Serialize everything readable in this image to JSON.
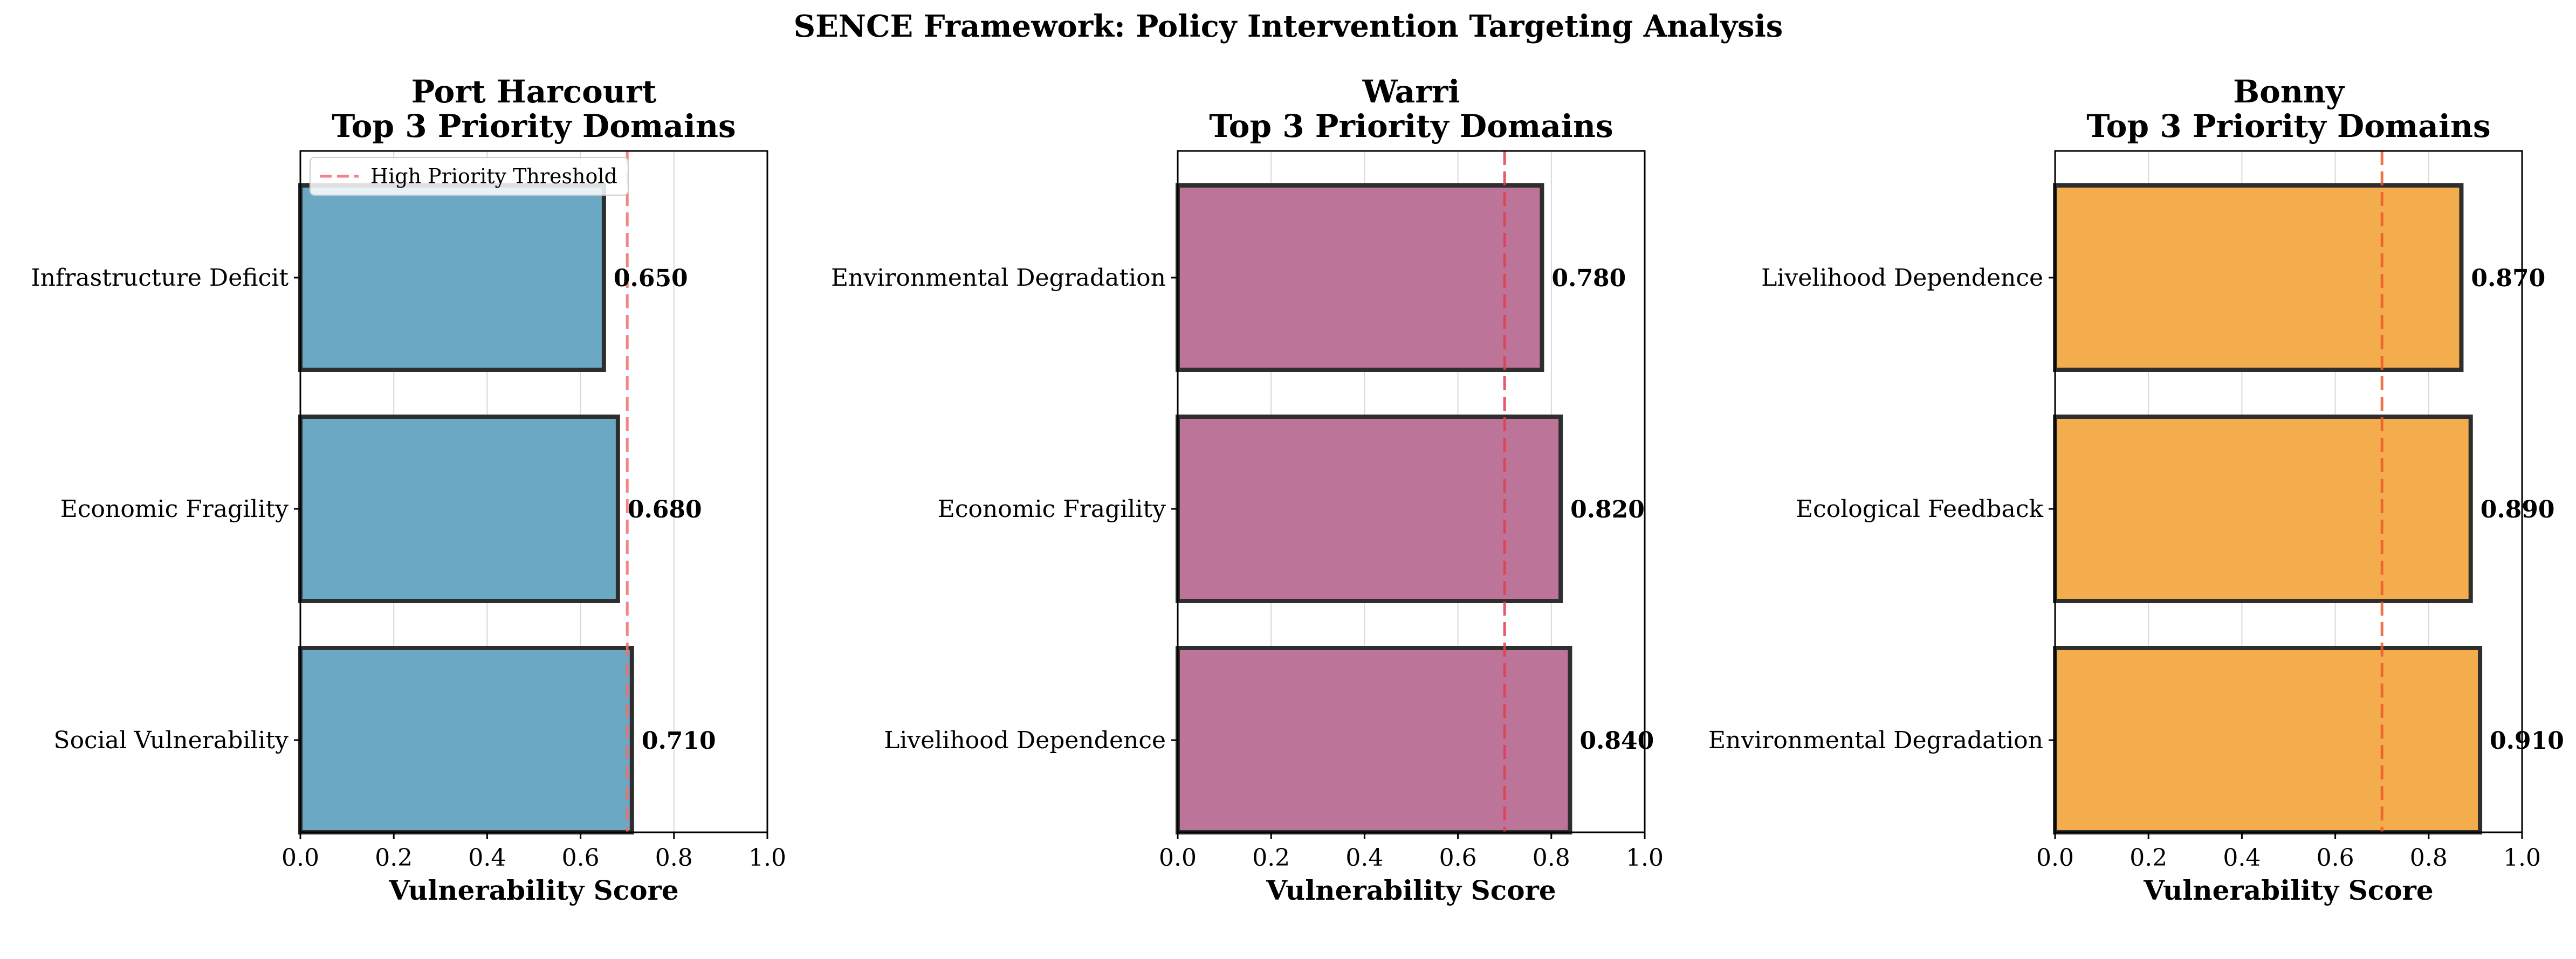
{
  "figure": {
    "suptitle": "SENCE Framework: Policy Intervention Targeting Analysis"
  },
  "chart_data": [
    {
      "type": "bar",
      "orientation": "horizontal",
      "title": "Port Harcourt\nTop 3 Priority Domains",
      "xlabel": "Vulnerability Score",
      "ylabel": "",
      "xlim": [
        0,
        1
      ],
      "xticks": [
        "0.0",
        "0.2",
        "0.4",
        "0.6",
        "0.8",
        "1.0"
      ],
      "categories": [
        "Social Vulnerability",
        "Economic Fragility",
        "Infrastructure Deficit"
      ],
      "values": [
        0.71,
        0.68,
        0.65
      ],
      "value_labels": [
        "0.710",
        "0.680",
        "0.650"
      ],
      "bar_color": "#6aa8c4",
      "grid": "x",
      "threshold": {
        "value": 0.7,
        "label": "High Priority Threshold",
        "color": "#ef6f6f"
      },
      "legend": {
        "position": "upper-left",
        "entries": [
          "High Priority Threshold"
        ]
      }
    },
    {
      "type": "bar",
      "orientation": "horizontal",
      "title": "Warri\nTop 3 Priority Domains",
      "xlabel": "Vulnerability Score",
      "ylabel": "",
      "xlim": [
        0,
        1
      ],
      "xticks": [
        "0.0",
        "0.2",
        "0.4",
        "0.6",
        "0.8",
        "1.0"
      ],
      "categories": [
        "Livelihood Dependence",
        "Economic Fragility",
        "Environmental Degradation"
      ],
      "values": [
        0.84,
        0.82,
        0.78
      ],
      "value_labels": [
        "0.840",
        "0.820",
        "0.780"
      ],
      "bar_color": "#bc7499",
      "grid": "x",
      "threshold": {
        "value": 0.7,
        "label": "High Priority Threshold",
        "color": "#e0404f"
      }
    },
    {
      "type": "bar",
      "orientation": "horizontal",
      "title": "Bonny\nTop 3 Priority Domains",
      "xlabel": "Vulnerability Score",
      "ylabel": "",
      "xlim": [
        0,
        1
      ],
      "xticks": [
        "0.0",
        "0.2",
        "0.4",
        "0.6",
        "0.8",
        "1.0"
      ],
      "categories": [
        "Environmental Degradation",
        "Ecological Feedback",
        "Livelihood Dependence"
      ],
      "values": [
        0.91,
        0.89,
        0.87
      ],
      "value_labels": [
        "0.910",
        "0.890",
        "0.870"
      ],
      "bar_color": "#f3ad4d",
      "grid": "x",
      "threshold": {
        "value": 0.7,
        "label": "High Priority Threshold",
        "color": "#ee5a2a"
      }
    }
  ]
}
